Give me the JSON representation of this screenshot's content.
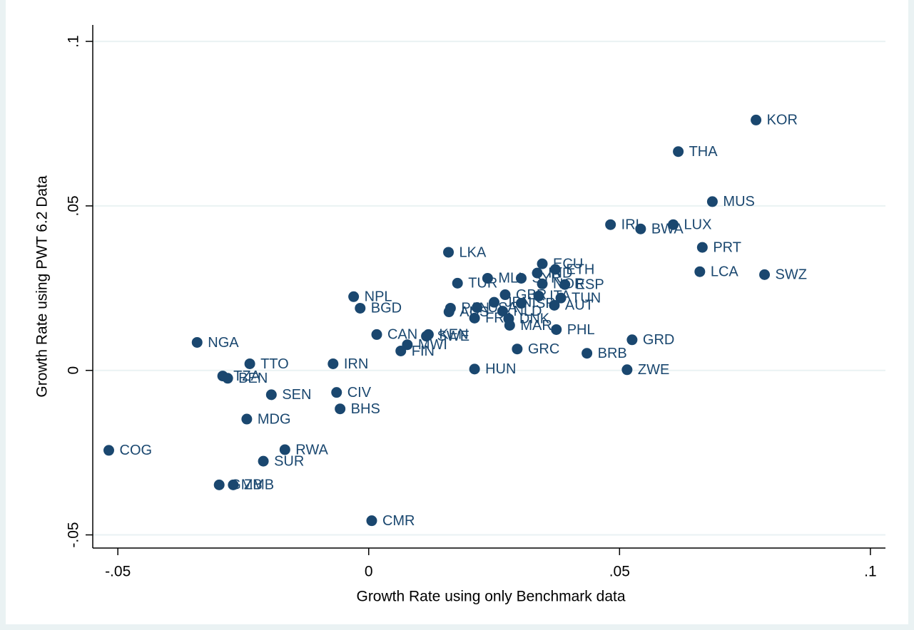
{
  "chart_data": {
    "type": "scatter",
    "x_label": "Growth Rate using only Benchmark data",
    "y_label": "Growth Rate using PWT 6.2 Data",
    "color": "#1a476f",
    "grid": true,
    "xlim": [
      -0.055,
      0.103
    ],
    "ylim": [
      -0.054,
      0.105
    ],
    "xticks": [
      {
        "value": -0.05,
        "label": "-.05"
      },
      0,
      {
        "value": 0.05,
        "label": ".05"
      },
      {
        "value": 0.1,
        "label": ".1"
      }
    ],
    "yticks": [
      {
        "value": -0.05,
        "label": "-.05"
      },
      0,
      {
        "value": 0.05,
        "label": ".05"
      },
      {
        "value": 0.1,
        "label": ".1"
      }
    ],
    "labels": [
      "KOR",
      "THA",
      "MUS",
      "IRL",
      "BWA",
      "LUX",
      "PRT",
      "LCA",
      "SWZ",
      "LKA",
      "ECU",
      "ETH",
      "TUR",
      "MLI",
      "SYR",
      "IND",
      "NOR",
      "ESP",
      "NPL",
      "BGD",
      "PAN",
      "AUS",
      "USA",
      "JPN",
      "GBR",
      "NLD",
      "DNK",
      "FRA",
      "MAR",
      "ISR",
      "ITA",
      "TUN",
      "AUT",
      "PHL",
      "CAN",
      "KEN",
      "SWE",
      "MWI",
      "FIN",
      "GRC",
      "BRB",
      "GRD",
      "ZWE",
      "HUN",
      "NGA",
      "TTO",
      "IRN",
      "TZA",
      "BEN",
      "SEN",
      "CIV",
      "BHS",
      "MDG",
      "COG",
      "RWA",
      "SUR",
      "GMB",
      "ZMB",
      "CMR"
    ],
    "x": [
      0.0772,
      0.0617,
      0.0685,
      0.0482,
      0.0542,
      0.0607,
      0.0665,
      0.066,
      0.0789,
      0.0159,
      0.0346,
      0.0372,
      0.0177,
      0.0237,
      0.0304,
      0.0336,
      0.0346,
      0.0391,
      -0.003,
      -0.0017,
      0.0163,
      0.016,
      0.0216,
      0.025,
      0.0272,
      0.0267,
      0.0279,
      0.0211,
      0.0281,
      0.0304,
      0.0339,
      0.0383,
      0.037,
      0.0374,
      0.0016,
      0.0119,
      0.0115,
      0.0077,
      0.0064,
      0.0296,
      0.0435,
      0.0525,
      0.0515,
      0.0211,
      -0.0342,
      -0.0237,
      -0.0071,
      -0.0291,
      -0.0281,
      -0.0194,
      -0.0064,
      -0.0057,
      -0.0243,
      -0.0518,
      -0.0167,
      -0.021,
      -0.0298,
      -0.027,
      0.0006
    ],
    "y": [
      0.0761,
      0.0665,
      0.0513,
      0.0443,
      0.043,
      0.0443,
      0.0374,
      0.03,
      0.0291,
      0.0359,
      0.0324,
      0.0307,
      0.0265,
      0.028,
      0.028,
      0.0296,
      0.0263,
      0.0261,
      0.0224,
      0.0189,
      0.0189,
      0.0178,
      0.0191,
      0.0207,
      0.023,
      0.018,
      0.0157,
      0.0159,
      0.0137,
      0.0204,
      0.0226,
      0.022,
      0.0198,
      0.0124,
      0.0109,
      0.0109,
      0.0104,
      0.0078,
      0.0059,
      0.0065,
      0.0052,
      0.0093,
      0.0002,
      0.0004,
      0.0085,
      0.002,
      0.002,
      -0.0017,
      -0.0024,
      -0.0074,
      -0.0067,
      -0.0117,
      -0.0148,
      -0.0243,
      -0.0241,
      -0.0276,
      -0.0348,
      -0.0348,
      -0.0457
    ]
  }
}
